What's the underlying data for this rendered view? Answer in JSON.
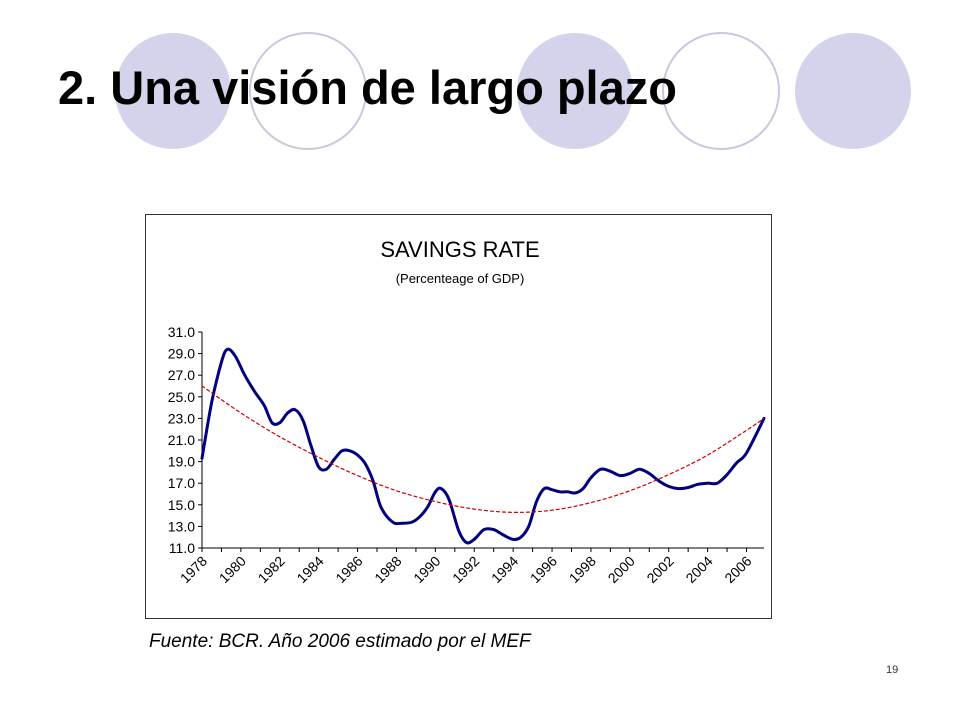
{
  "slide": {
    "title": "2. Una visión de largo plazo",
    "source_note": "Fuente: BCR. Año 2006 estimado por el MEF",
    "page_number": "19",
    "circle_color": "#d3d3eb",
    "circle_stroke": "#c8c8e0"
  },
  "chart_data": {
    "type": "line",
    "title": "SAVINGS RATE",
    "subtitle": "(Percenteage of GDP)",
    "xlabel": "",
    "ylabel": "",
    "xlim": [
      1978,
      2006.9
    ],
    "ylim": [
      11.0,
      31.0
    ],
    "yticks": [
      "11.0",
      "13.0",
      "15.0",
      "17.0",
      "19.0",
      "21.0",
      "23.0",
      "25.0",
      "27.0",
      "29.0",
      "31.0"
    ],
    "xticks": [
      "1978",
      "1980",
      "1982",
      "1984",
      "1986",
      "1988",
      "1990",
      "1992",
      "1994",
      "1996",
      "1998",
      "2000",
      "2002",
      "2004",
      "2006"
    ],
    "grid": false,
    "legend": "none",
    "series": [
      {
        "role": "actual",
        "color": "#000080",
        "style": "solid",
        "x": [
          1978,
          1978.5,
          1979,
          1979.3,
          1979.7,
          1980.2,
          1980.7,
          1981.2,
          1981.6,
          1982,
          1982.4,
          1982.8,
          1983.2,
          1983.6,
          1984,
          1984.4,
          1984.8,
          1985.2,
          1985.6,
          1986,
          1986.4,
          1986.8,
          1987.2,
          1987.8,
          1988.3,
          1988.8,
          1989.2,
          1989.6,
          1990,
          1990.3,
          1990.7,
          1991.2,
          1991.6,
          1992,
          1992.5,
          1993,
          1993.5,
          1994,
          1994.4,
          1994.8,
          1995.2,
          1995.6,
          1996,
          1996.4,
          1996.8,
          1997.2,
          1997.6,
          1998,
          1998.5,
          1999,
          1999.5,
          2000,
          2000.5,
          2001,
          2001.5,
          2002,
          2002.5,
          2003,
          2003.5,
          2004,
          2004.5,
          2005,
          2005.5,
          2006,
          2006.9
        ],
        "values": [
          19.3,
          24.5,
          28.2,
          29.4,
          28.8,
          27.0,
          25.5,
          24.2,
          22.6,
          22.6,
          23.5,
          23.8,
          22.8,
          20.5,
          18.5,
          18.3,
          19.2,
          20.0,
          20.0,
          19.6,
          18.8,
          17.2,
          14.8,
          13.4,
          13.3,
          13.4,
          13.9,
          14.8,
          16.2,
          16.5,
          15.5,
          12.6,
          11.5,
          11.8,
          12.7,
          12.7,
          12.2,
          11.8,
          12.0,
          13.0,
          15.3,
          16.5,
          16.4,
          16.2,
          16.2,
          16.1,
          16.5,
          17.5,
          18.3,
          18.1,
          17.7,
          17.9,
          18.3,
          17.9,
          17.2,
          16.7,
          16.5,
          16.6,
          16.9,
          17.0,
          17.0,
          17.8,
          18.9,
          19.8,
          23.0
        ]
      },
      {
        "role": "trend",
        "color": "#cc0000",
        "style": "dashed",
        "x": [
          1978,
          1980,
          1982,
          1984,
          1986,
          1988,
          1990,
          1992,
          1994,
          1996,
          1998,
          2000,
          2002,
          2004,
          2006,
          2006.9
        ],
        "values": [
          26.0,
          23.5,
          21.3,
          19.4,
          17.7,
          16.3,
          15.3,
          14.6,
          14.3,
          14.5,
          15.2,
          16.3,
          17.8,
          19.6,
          21.9,
          23.0
        ]
      }
    ]
  }
}
